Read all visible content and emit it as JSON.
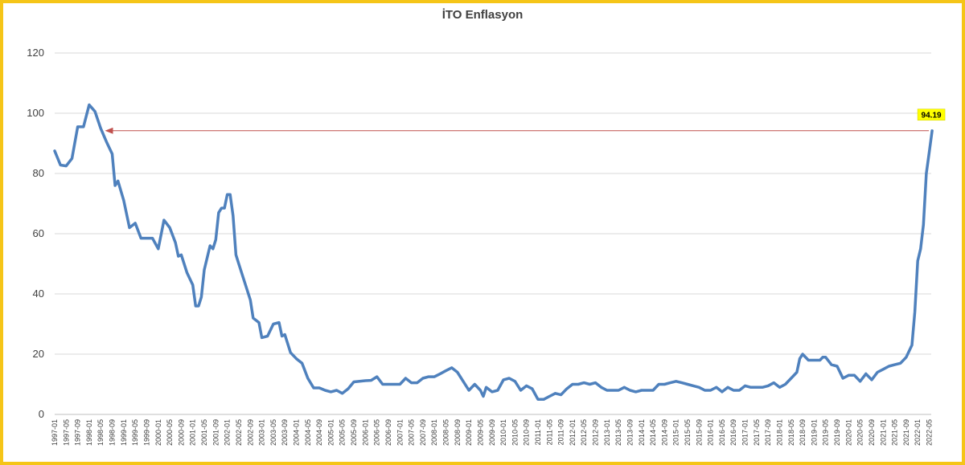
{
  "chart_data": {
    "type": "line",
    "title": "İTO Enflasyon",
    "xlabel": "",
    "ylabel": "",
    "ylim": [
      0,
      120
    ],
    "y_ticks": [
      0,
      20,
      40,
      60,
      80,
      100,
      120
    ],
    "grid": true,
    "x_tick_labels": [
      "1997-01",
      "1997-05",
      "1997-09",
      "1998-01",
      "1998-05",
      "1998-09",
      "1999-01",
      "1999-05",
      "1999-09",
      "2000-01",
      "2000-05",
      "2000-09",
      "2001-01",
      "2001-05",
      "2001-09",
      "2002-01",
      "2002-05",
      "2002-09",
      "2003-01",
      "2003-05",
      "2003-09",
      "2004-01",
      "2004-05",
      "2004-09",
      "2005-01",
      "2005-05",
      "2005-09",
      "2006-01",
      "2006-05",
      "2006-09",
      "2007-01",
      "2007-05",
      "2007-09",
      "2008-01",
      "2008-05",
      "2008-09",
      "2009-01",
      "2009-05",
      "2009-09",
      "2010-01",
      "2010-05",
      "2010-09",
      "2011-01",
      "2011-05",
      "2011-09",
      "2012-01",
      "2012-05",
      "2012-09",
      "2013-01",
      "2013-05",
      "2013-09",
      "2014-01",
      "2014-05",
      "2014-09",
      "2015-01",
      "2015-05",
      "2015-09",
      "2016-01",
      "2016-05",
      "2016-09",
      "2017-01",
      "2017-05",
      "2017-09",
      "2018-01",
      "2018-05",
      "2018-09",
      "2019-01",
      "2019-05",
      "2019-09",
      "2020-01",
      "2020-05",
      "2020-09",
      "2021-01",
      "2021-05",
      "2021-09",
      "2022-01",
      "2022-05"
    ],
    "series": [
      {
        "color": "#4f81bd",
        "points": [
          [
            "1997-01",
            87.5
          ],
          [
            "1997-03",
            82.8
          ],
          [
            "1997-05",
            82.5
          ],
          [
            "1997-07",
            85
          ],
          [
            "1997-09",
            95.5
          ],
          [
            "1997-11",
            95.5
          ],
          [
            "1998-01",
            102.8
          ],
          [
            "1998-03",
            100.6
          ],
          [
            "1998-05",
            95
          ],
          [
            "1998-07",
            90.5
          ],
          [
            "1998-09",
            86.5
          ],
          [
            "1998-10",
            76
          ],
          [
            "1998-11",
            77.5
          ],
          [
            "1999-01",
            71
          ],
          [
            "1999-03",
            62
          ],
          [
            "1999-05",
            63.5
          ],
          [
            "1999-07",
            58.5
          ],
          [
            "1999-09",
            58.5
          ],
          [
            "1999-11",
            58.5
          ],
          [
            "2000-01",
            55
          ],
          [
            "2000-03",
            64.5
          ],
          [
            "2000-05",
            62
          ],
          [
            "2000-07",
            57
          ],
          [
            "2000-08",
            52.5
          ],
          [
            "2000-09",
            53
          ],
          [
            "2000-11",
            47
          ],
          [
            "2001-01",
            43
          ],
          [
            "2001-02",
            36
          ],
          [
            "2001-03",
            36
          ],
          [
            "2001-04",
            39
          ],
          [
            "2001-05",
            48
          ],
          [
            "2001-07",
            56
          ],
          [
            "2001-08",
            55
          ],
          [
            "2001-09",
            58
          ],
          [
            "2001-10",
            67
          ],
          [
            "2001-11",
            68.5
          ],
          [
            "2001-12",
            68.5
          ],
          [
            "2002-01",
            73
          ],
          [
            "2002-02",
            73
          ],
          [
            "2002-03",
            66
          ],
          [
            "2002-04",
            53
          ],
          [
            "2002-05",
            50
          ],
          [
            "2002-07",
            44
          ],
          [
            "2002-09",
            38
          ],
          [
            "2002-10",
            32
          ],
          [
            "2002-12",
            30.5
          ],
          [
            "2003-01",
            25.5
          ],
          [
            "2003-03",
            26
          ],
          [
            "2003-05",
            30
          ],
          [
            "2003-07",
            30.5
          ],
          [
            "2003-08",
            26
          ],
          [
            "2003-09",
            26.5
          ],
          [
            "2003-11",
            20.5
          ],
          [
            "2004-01",
            18.5
          ],
          [
            "2004-03",
            17
          ],
          [
            "2004-05",
            12
          ],
          [
            "2004-07",
            8.8
          ],
          [
            "2004-09",
            8.8
          ],
          [
            "2004-11",
            8
          ],
          [
            "2005-01",
            7.5
          ],
          [
            "2005-03",
            8
          ],
          [
            "2005-05",
            7
          ],
          [
            "2005-07",
            8.5
          ],
          [
            "2005-09",
            10.8
          ],
          [
            "2005-11",
            11
          ],
          [
            "2006-01",
            11.2
          ],
          [
            "2006-03",
            11.3
          ],
          [
            "2006-05",
            12.5
          ],
          [
            "2006-07",
            10
          ],
          [
            "2006-09",
            10
          ],
          [
            "2006-11",
            10
          ],
          [
            "2007-01",
            10
          ],
          [
            "2007-03",
            12
          ],
          [
            "2007-05",
            10.5
          ],
          [
            "2007-07",
            10.5
          ],
          [
            "2007-09",
            12
          ],
          [
            "2007-11",
            12.5
          ],
          [
            "2008-01",
            12.5
          ],
          [
            "2008-03",
            13.5
          ],
          [
            "2008-05",
            14.5
          ],
          [
            "2008-07",
            15.5
          ],
          [
            "2008-09",
            14
          ],
          [
            "2008-11",
            11
          ],
          [
            "2009-01",
            8
          ],
          [
            "2009-03",
            10
          ],
          [
            "2009-05",
            8
          ],
          [
            "2009-06",
            6
          ],
          [
            "2009-07",
            9
          ],
          [
            "2009-09",
            7.5
          ],
          [
            "2009-11",
            8
          ],
          [
            "2010-01",
            11.5
          ],
          [
            "2010-03",
            12
          ],
          [
            "2010-05",
            11
          ],
          [
            "2010-07",
            8
          ],
          [
            "2010-09",
            9.5
          ],
          [
            "2010-11",
            8.5
          ],
          [
            "2011-01",
            5
          ],
          [
            "2011-03",
            5
          ],
          [
            "2011-05",
            6
          ],
          [
            "2011-07",
            7
          ],
          [
            "2011-09",
            6.5
          ],
          [
            "2011-11",
            8.5
          ],
          [
            "2012-01",
            10
          ],
          [
            "2012-03",
            10
          ],
          [
            "2012-05",
            10.5
          ],
          [
            "2012-07",
            10
          ],
          [
            "2012-09",
            10.5
          ],
          [
            "2012-11",
            9
          ],
          [
            "2013-01",
            8
          ],
          [
            "2013-03",
            8
          ],
          [
            "2013-05",
            8
          ],
          [
            "2013-07",
            9
          ],
          [
            "2013-09",
            8
          ],
          [
            "2013-11",
            7.5
          ],
          [
            "2014-01",
            8
          ],
          [
            "2014-03",
            8
          ],
          [
            "2014-05",
            8
          ],
          [
            "2014-07",
            10
          ],
          [
            "2014-09",
            10
          ],
          [
            "2014-11",
            10.5
          ],
          [
            "2015-01",
            11
          ],
          [
            "2015-03",
            10.5
          ],
          [
            "2015-05",
            10
          ],
          [
            "2015-07",
            9.5
          ],
          [
            "2015-09",
            9
          ],
          [
            "2015-11",
            8
          ],
          [
            "2016-01",
            8
          ],
          [
            "2016-03",
            9
          ],
          [
            "2016-05",
            7.5
          ],
          [
            "2016-07",
            9
          ],
          [
            "2016-09",
            8
          ],
          [
            "2016-11",
            8
          ],
          [
            "2017-01",
            9.5
          ],
          [
            "2017-03",
            9
          ],
          [
            "2017-05",
            9
          ],
          [
            "2017-07",
            9
          ],
          [
            "2017-09",
            9.5
          ],
          [
            "2017-11",
            10.5
          ],
          [
            "2018-01",
            9
          ],
          [
            "2018-03",
            10
          ],
          [
            "2018-05",
            12
          ],
          [
            "2018-07",
            14
          ],
          [
            "2018-08",
            18.5
          ],
          [
            "2018-09",
            20
          ],
          [
            "2018-11",
            18
          ],
          [
            "2019-01",
            18
          ],
          [
            "2019-03",
            18
          ],
          [
            "2019-04",
            19
          ],
          [
            "2019-05",
            19
          ],
          [
            "2019-07",
            16.5
          ],
          [
            "2019-09",
            16
          ],
          [
            "2019-11",
            12
          ],
          [
            "2020-01",
            13
          ],
          [
            "2020-03",
            13
          ],
          [
            "2020-05",
            11
          ],
          [
            "2020-07",
            13.5
          ],
          [
            "2020-09",
            11.5
          ],
          [
            "2020-11",
            14
          ],
          [
            "2021-01",
            15
          ],
          [
            "2021-03",
            16
          ],
          [
            "2021-05",
            16.5
          ],
          [
            "2021-07",
            17
          ],
          [
            "2021-09",
            19
          ],
          [
            "2021-11",
            23
          ],
          [
            "2021-12",
            34
          ],
          [
            "2022-01",
            51
          ],
          [
            "2022-02",
            55
          ],
          [
            "2022-03",
            63
          ],
          [
            "2022-04",
            80
          ],
          [
            "2022-05",
            87
          ],
          [
            "2022-06",
            94.19
          ]
        ]
      }
    ],
    "reference_line": {
      "value": 94.19,
      "from": "1998-09",
      "to": "2022-06",
      "color": "#c0504d"
    },
    "annotations": [
      {
        "text": "94.19",
        "at": "2022-06",
        "value": 94.19,
        "background": "#ffff00"
      }
    ]
  }
}
